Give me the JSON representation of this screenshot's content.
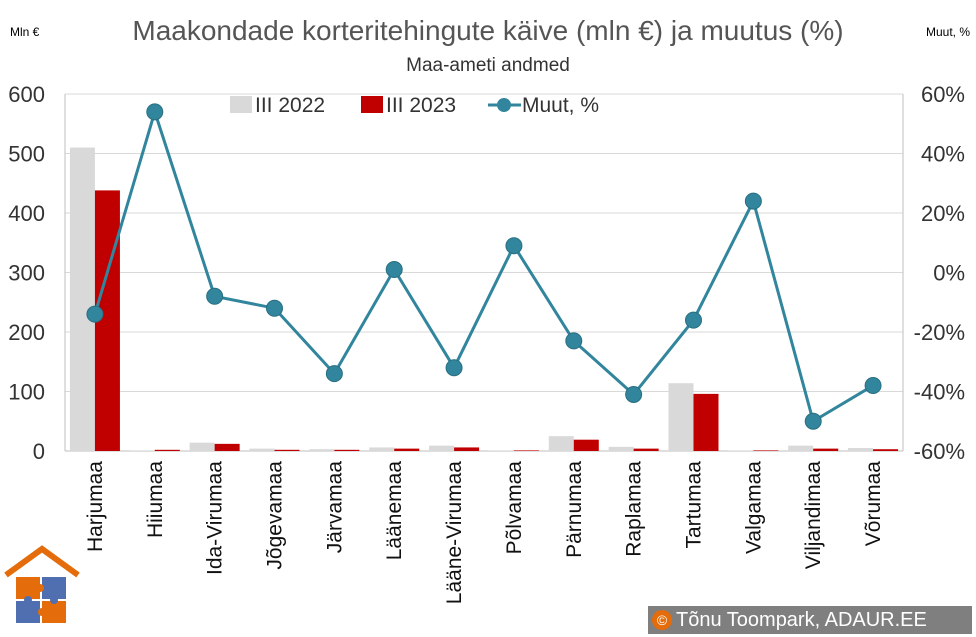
{
  "chart_data": {
    "type": "bar+line",
    "title": "Maakondade korteritehingute käive (mln €) ja muutus (%)",
    "subtitle": "Maa-ameti andmed",
    "ylabel_left": "Mln €",
    "ylabel_right": "Muut, %",
    "ylim_left": [
      0,
      600
    ],
    "ylim_right": [
      -60,
      60
    ],
    "yticks_left": [
      "0",
      "100",
      "200",
      "300",
      "400",
      "500",
      "600"
    ],
    "yticks_right": [
      "-60%",
      "-40%",
      "-20%",
      "0%",
      "20%",
      "40%",
      "60%"
    ],
    "categories": [
      "Harjumaa",
      "Hiiumaa",
      "Ida-Virumaa",
      "Jõgevamaa",
      "Järvamaa",
      "Läänemaa",
      "Lääne-Virumaa",
      "Põlvamaa",
      "Pärnumaa",
      "Raplamaa",
      "Tartumaa",
      "Valgamaa",
      "Viljandimaa",
      "Võrumaa"
    ],
    "series": [
      {
        "name": "III 2022",
        "type": "bar",
        "axis": "left",
        "color": "#d9d9d9",
        "values": [
          510,
          1,
          14,
          4,
          3,
          6,
          9,
          1,
          25,
          7,
          114,
          1,
          9,
          5
        ]
      },
      {
        "name": "III 2023",
        "type": "bar",
        "axis": "left",
        "color": "#c00000",
        "values": [
          438,
          2,
          12,
          2,
          2,
          4,
          6,
          1,
          19,
          4,
          96,
          1,
          4,
          3
        ]
      },
      {
        "name": "Muut, %",
        "type": "line",
        "axis": "right",
        "color": "#31859c",
        "values": [
          -14,
          54,
          -8,
          -12,
          -34,
          1,
          -32,
          9,
          -23,
          -41,
          -16,
          24,
          -50,
          -38
        ]
      }
    ],
    "legend_position": "top"
  },
  "footer": {
    "copyright_symbol": "©",
    "copyright_text": "Tõnu Toompark, ADAUR.EE"
  },
  "colors": {
    "logo_roof": "#e46c0a",
    "logo_piece_blue": "#4f6fb0",
    "logo_piece_orange": "#e46c0a"
  }
}
